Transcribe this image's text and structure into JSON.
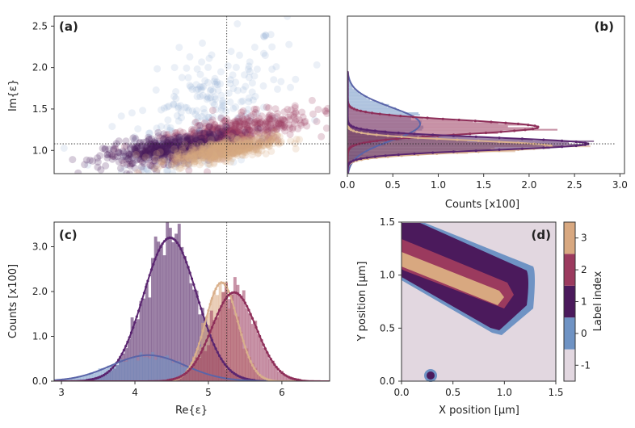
{
  "colors": {
    "label_m1": "#e2d7e0",
    "label_0": "#6f93c4",
    "label_1": "#4b1a5c",
    "label_2": "#9b3a5e",
    "label_3": "#d8a880",
    "fit_label1": "#5a2570",
    "fit_label2": "#8e2f5a",
    "fit_label0": "#5a64a8",
    "fit_label3": "#d9b08c"
  },
  "panels": {
    "a": {
      "tag": "(a)"
    },
    "b": {
      "tag": "(b)"
    },
    "c": {
      "tag": "(c)"
    },
    "d": {
      "tag": "(d)"
    }
  },
  "chart_data": [
    {
      "id": "a",
      "type": "scatter",
      "title": "",
      "xlabel": "",
      "ylabel": "Im{ε}",
      "xlim": [
        2.9,
        6.65
      ],
      "ylim": [
        0.72,
        2.62
      ],
      "xticks_shown": false,
      "yticks": [
        "1.0",
        "1.5",
        "2.0",
        "2.5"
      ],
      "ytick_values": [
        1.0,
        1.5,
        2.0,
        2.5
      ],
      "reference_lines": {
        "x": 5.25,
        "y": 1.08
      },
      "series": [
        {
          "label_index": 0,
          "color_key": "label_0",
          "center": [
            4.95,
            1.45
          ],
          "spread": [
            0.55,
            0.38
          ],
          "slope": 0.45
        },
        {
          "label_index": 2,
          "color_key": "label_2",
          "center": [
            5.3,
            1.2
          ],
          "spread": [
            0.55,
            0.1
          ],
          "slope": 0.18
        },
        {
          "label_index": 1,
          "color_key": "label_1",
          "center": [
            4.5,
            1.02
          ],
          "spread": [
            0.45,
            0.08
          ],
          "slope": 0.12
        },
        {
          "label_index": 3,
          "color_key": "label_3",
          "center": [
            5.2,
            1.0
          ],
          "spread": [
            0.35,
            0.06
          ],
          "slope": 0.15
        }
      ]
    },
    {
      "id": "b",
      "type": "bar",
      "orientation": "horizontal",
      "title": "",
      "xlabel": "Counts [x100]",
      "ylabel": "",
      "xlim": [
        0,
        3.05
      ],
      "ylim": [
        0.72,
        2.62
      ],
      "xticks": [
        "0.0",
        "0.5",
        "1.0",
        "1.5",
        "2.0",
        "2.5",
        "3.0"
      ],
      "xtick_values": [
        0,
        0.5,
        1.0,
        1.5,
        2.0,
        2.5,
        3.0
      ],
      "reference_lines": {
        "y": 1.08
      },
      "series": [
        {
          "label_index": 0,
          "color_key": "label_0",
          "fit_color_key": "fit_label0",
          "peak": 0.8,
          "mu": 1.32,
          "sigma": 0.2
        },
        {
          "label_index": 2,
          "color_key": "label_2",
          "fit_color_key": "fit_label2",
          "peak": 2.1,
          "mu": 1.28,
          "sigma": 0.085
        },
        {
          "label_index": 3,
          "color_key": "label_3",
          "fit_color_key": "fit_label3",
          "peak": 2.25,
          "mu": 1.05,
          "sigma": 0.07
        },
        {
          "label_index": 1,
          "color_key": "label_1",
          "fit_color_key": "fit_label1",
          "peak": 2.65,
          "mu": 1.08,
          "sigma": 0.075
        }
      ]
    },
    {
      "id": "c",
      "type": "bar",
      "title": "",
      "xlabel": "Re{ε}",
      "ylabel": "Counts [x100]",
      "xlim": [
        2.9,
        6.65
      ],
      "ylim": [
        0,
        3.55
      ],
      "xticks": [
        "3",
        "4",
        "5",
        "6"
      ],
      "xtick_values": [
        3,
        4,
        5,
        6
      ],
      "yticks": [
        "0.0",
        "1.0",
        "2.0",
        "3.0"
      ],
      "ytick_values": [
        0,
        1.0,
        2.0,
        3.0
      ],
      "reference_lines": {
        "x": 5.25
      },
      "series": [
        {
          "label_index": 1,
          "color_key": "label_1",
          "fit_color_key": "fit_label1",
          "peak": 3.2,
          "mu": 4.48,
          "sigma": 0.36
        },
        {
          "label_index": 0,
          "color_key": "label_0",
          "fit_color_key": "fit_label0",
          "peak": 0.58,
          "mu": 4.18,
          "sigma": 0.5
        },
        {
          "label_index": 3,
          "color_key": "label_3",
          "fit_color_key": "fit_label3",
          "peak": 2.2,
          "mu": 5.18,
          "sigma": 0.22
        },
        {
          "label_index": 2,
          "color_key": "label_2",
          "fit_color_key": "fit_label2",
          "peak": 1.98,
          "mu": 5.35,
          "sigma": 0.3
        }
      ]
    },
    {
      "id": "d",
      "type": "heatmap",
      "title": "",
      "xlabel": "X position [μm]",
      "ylabel": "Y position [μm]",
      "xlim": [
        0,
        1.5
      ],
      "ylim": [
        0,
        1.5
      ],
      "xticks": [
        "0.0",
        "0.5",
        "1.0",
        "1.5"
      ],
      "xtick_values": [
        0,
        0.5,
        1.0,
        1.5
      ],
      "yticks": [
        "0.0",
        "0.5",
        "1.0",
        "1.5"
      ],
      "ytick_values": [
        0,
        0.5,
        1.0,
        1.5
      ],
      "colorbar": {
        "label": "Label index",
        "levels": [
          -1,
          0,
          1,
          2,
          3
        ],
        "tick_labels": [
          "-1",
          "0",
          "1",
          "2",
          "3"
        ],
        "color_keys": [
          "label_m1",
          "label_0",
          "label_1",
          "label_2",
          "label_3"
        ]
      },
      "background_label": -1,
      "features": [
        {
          "label_index": 0,
          "shape": "blob",
          "center": [
            0.29,
            0.055
          ],
          "radius": 0.055
        }
      ]
    }
  ]
}
